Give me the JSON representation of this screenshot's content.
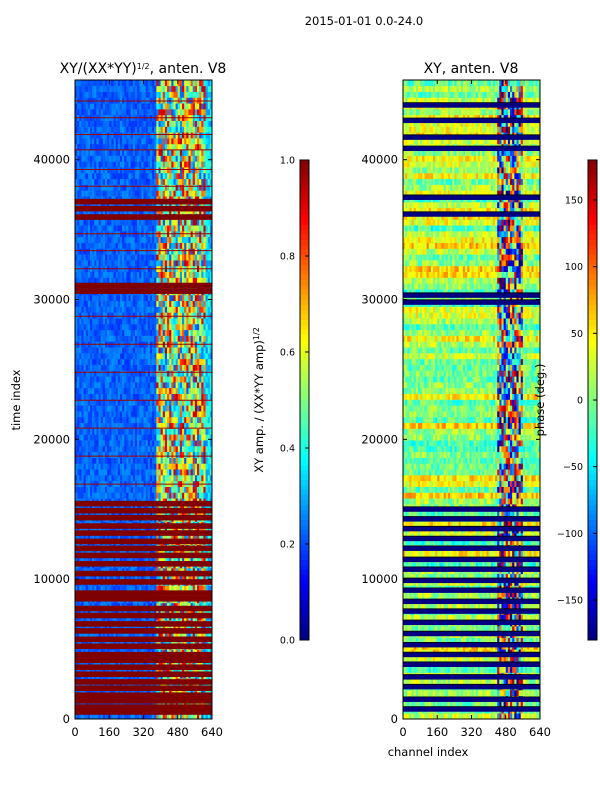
{
  "suptitle": "2015-01-01 0.0-24.0",
  "chart_data": [
    {
      "type": "heatmap",
      "title": "XY/(XX*YY)",
      "title_power": "1/2",
      "title_suffix": ", anten. V8",
      "xlabel": "",
      "ylabel": "time index",
      "xlim": [
        0,
        640
      ],
      "ylim": [
        0,
        45700
      ],
      "xticks": [
        0,
        160,
        320,
        480,
        640
      ],
      "yticks": [
        0,
        10000,
        20000,
        30000,
        40000
      ],
      "colormap": "jet",
      "colorbar": {
        "label_prefix": "XY amp. / (XX*YY amp)",
        "label_power": "1/2",
        "range": [
          0,
          1
        ],
        "ticks": [
          "0.0",
          "0.2",
          "0.4",
          "0.6",
          "0.8",
          "1.0"
        ]
      },
      "saturated_bands_time_index": [
        500,
        850,
        1300,
        1700,
        2200,
        2650,
        3200,
        3700,
        4200,
        4600,
        5200,
        5700,
        6300,
        6800,
        7400,
        7900,
        8600,
        9000,
        9800,
        10400,
        11100,
        11700,
        12200,
        12700,
        13300,
        13800,
        14400,
        14900,
        15400,
        30600,
        31000,
        35900,
        36500,
        37000
      ],
      "thin_lines_time_index": [
        16800,
        18800,
        20800,
        22800,
        24800,
        26800,
        28800,
        32200,
        33500,
        34700,
        38100,
        39300,
        40700,
        41800,
        43000,
        44200
      ]
    },
    {
      "type": "heatmap",
      "title": "XY, anten. V8",
      "xlabel": "channel index",
      "ylabel": "",
      "xlim": [
        0,
        640
      ],
      "ylim": [
        0,
        45700
      ],
      "xticks": [
        0,
        160,
        320,
        480,
        640
      ],
      "yticks": [
        0,
        10000,
        20000,
        30000,
        40000
      ],
      "colormap": "jet",
      "colorbar": {
        "label": "phase (deg.)",
        "range": [
          -180,
          180
        ],
        "ticks": [
          "−150",
          "−100",
          "−50",
          "0",
          "50",
          "100",
          "150"
        ]
      },
      "masked_bands_time_index": [
        700,
        1400,
        2300,
        3000,
        3900,
        4600,
        5300,
        6100,
        6900,
        7700,
        8400,
        9200,
        9900,
        10700,
        11400,
        12200,
        12900,
        13600,
        14300,
        15000,
        29800,
        30300,
        36100,
        37300,
        40800,
        41600,
        42800,
        43900
      ]
    }
  ]
}
